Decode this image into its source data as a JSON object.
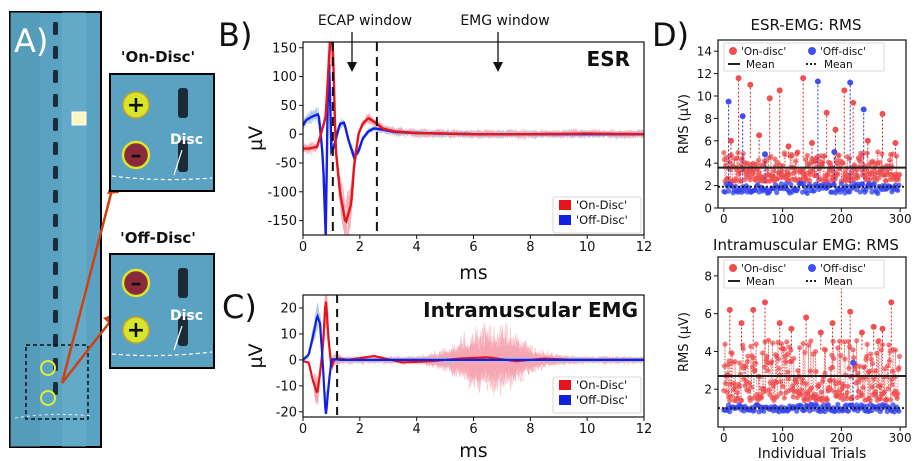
{
  "panels": {
    "A": {
      "label": "A)",
      "on_title": "'On-Disc'",
      "off_title": "'Off-Disc'",
      "disc_label": "Disc",
      "plus": "+",
      "minus": "–"
    },
    "B": {
      "label": "B)"
    },
    "C": {
      "label": "C)"
    },
    "D": {
      "label": "D)"
    }
  },
  "colors": {
    "on": "#e8141c",
    "off": "#1420e0",
    "on_light": "#f6a6b2",
    "off_light": "#a8c8e8",
    "tissue": "#5fa8c8"
  },
  "chart_data": [
    {
      "type": "line",
      "panel": "B",
      "title": "ESR",
      "xlabel": "ms",
      "ylabel": "µV",
      "xlim": [
        0,
        12
      ],
      "ylim": [
        -175,
        160
      ],
      "xticks": [
        0,
        2,
        4,
        6,
        8,
        10,
        12
      ],
      "yticks": [
        150,
        100,
        50,
        0,
        -50,
        -100,
        -150
      ],
      "annotations": [
        "ECAP window",
        "EMG window"
      ],
      "windows_ms": [
        1.05,
        2.6
      ],
      "series": [
        {
          "name": "'On-Disc'",
          "x": [
            0,
            0.2,
            0.5,
            0.8,
            0.95,
            1.05,
            1.15,
            1.3,
            1.5,
            1.7,
            1.8,
            1.95,
            2.1,
            2.3,
            2.55,
            2.8,
            3.2,
            4,
            6,
            8,
            10,
            12
          ],
          "y": [
            -25,
            -25,
            -22,
            30,
            160,
            160,
            -25,
            -100,
            -155,
            -120,
            -55,
            0,
            18,
            28,
            20,
            10,
            5,
            2,
            0,
            0,
            1,
            0
          ]
        },
        {
          "name": "'Off-Disc'",
          "x": [
            0,
            0.1,
            0.3,
            0.55,
            0.7,
            0.8,
            0.9,
            1,
            1.1,
            1.2,
            1.3,
            1.45,
            1.6,
            1.8,
            1.95,
            2.1,
            2.3,
            2.5,
            2.8,
            3.2,
            4,
            6,
            8,
            10,
            12
          ],
          "y": [
            15,
            24,
            30,
            35,
            -40,
            -175,
            160,
            -30,
            -20,
            0,
            18,
            20,
            -10,
            -40,
            -30,
            -8,
            5,
            10,
            8,
            4,
            2,
            0,
            0,
            0,
            0
          ]
        }
      ]
    },
    {
      "type": "line",
      "panel": "C",
      "title": "Intramuscular EMG",
      "xlabel": "ms",
      "ylabel": "µV",
      "xlim": [
        0,
        12
      ],
      "ylim": [
        -22,
        25
      ],
      "xticks": [
        0,
        2,
        4,
        6,
        8,
        10,
        12
      ],
      "yticks": [
        20,
        10,
        0,
        -10,
        -20
      ],
      "windows_ms": [
        1.2
      ],
      "series": [
        {
          "name": "'On-Disc'",
          "x": [
            0,
            0.2,
            0.35,
            0.5,
            0.6,
            0.7,
            0.8,
            0.9,
            1.0,
            1.1,
            1.3,
            1.6,
            2.5,
            3.5,
            4.5,
            5.5,
            6.5,
            7.5,
            8.5,
            9.5,
            10.5,
            12
          ],
          "y": [
            -0.5,
            -1,
            -8,
            -13,
            -5,
            5,
            24,
            8,
            -3,
            0,
            0.5,
            0,
            1.5,
            -1,
            -0.5,
            0.5,
            1,
            -0.5,
            0.5,
            0,
            0,
            0
          ]
        },
        {
          "name": "'Off-Disc'",
          "x": [
            0,
            0.2,
            0.35,
            0.5,
            0.6,
            0.7,
            0.8,
            0.9,
            1.0,
            1.1,
            1.3,
            1.6,
            3,
            6,
            9,
            12
          ],
          "y": [
            0,
            2,
            9,
            17,
            14,
            -2,
            -22,
            -10,
            0,
            0.3,
            0,
            0,
            0,
            0,
            0,
            0
          ]
        }
      ]
    },
    {
      "type": "scatter",
      "panel": "D-top",
      "title": "ESR-EMG: RMS",
      "xlabel": "",
      "ylabel": "RMS (µV)",
      "xlim": [
        -10,
        310
      ],
      "ylim": [
        0,
        15
      ],
      "xticks": [
        0,
        100,
        200,
        300
      ],
      "yticks": [
        0,
        2,
        4,
        6,
        8,
        10,
        12,
        14
      ],
      "legend": [
        "'On-disc'",
        "'Off-disc'",
        "Mean",
        "Mean"
      ],
      "mean_on": 3.6,
      "mean_off": 1.9,
      "on_peaks": [
        [
          12,
          6
        ],
        [
          25,
          11.6
        ],
        [
          45,
          11
        ],
        [
          60,
          6.5
        ],
        [
          78,
          9.8
        ],
        [
          95,
          10.5
        ],
        [
          110,
          5.5
        ],
        [
          135,
          11.6
        ],
        [
          150,
          5.8
        ],
        [
          175,
          8.5
        ],
        [
          190,
          7
        ],
        [
          205,
          10.5
        ],
        [
          220,
          9.4
        ],
        [
          245,
          6
        ],
        [
          270,
          8.4
        ],
        [
          292,
          5.8
        ]
      ],
      "off_peaks": [
        [
          8,
          9.5
        ],
        [
          32,
          8.2
        ],
        [
          70,
          4.8
        ],
        [
          160,
          11.3
        ],
        [
          188,
          5
        ],
        [
          215,
          11.2
        ],
        [
          238,
          8.8
        ]
      ],
      "on_band": [
        2.4,
        5.0
      ],
      "off_band": [
        1.3,
        2.2
      ]
    },
    {
      "type": "scatter",
      "panel": "D-bottom",
      "title": "Intramuscular EMG: RMS",
      "xlabel": "Individual Trials",
      "ylabel": "RMS (µV)",
      "xlim": [
        -10,
        310
      ],
      "ylim": [
        0,
        9
      ],
      "xticks": [
        0,
        100,
        200,
        300
      ],
      "yticks": [
        2,
        4,
        6,
        8
      ],
      "legend": [
        "'On-disc'",
        "'Off-disc'",
        "Mean",
        "Mean"
      ],
      "mean_on": 2.7,
      "mean_off": 1.0,
      "on_peaks": [
        [
          10,
          6.2
        ],
        [
          30,
          5.5
        ],
        [
          50,
          6.2
        ],
        [
          70,
          6.6
        ],
        [
          95,
          5.5
        ],
        [
          115,
          5.2
        ],
        [
          140,
          5.8
        ],
        [
          165,
          5.0
        ],
        [
          185,
          5.5
        ],
        [
          200,
          8.0
        ],
        [
          215,
          6.1
        ],
        [
          235,
          5.0
        ],
        [
          255,
          5.3
        ],
        [
          270,
          5.2
        ],
        [
          285,
          6.6
        ]
      ],
      "off_peaks": [
        [
          220,
          3.4
        ]
      ],
      "on_band": [
        1.4,
        4.6
      ],
      "off_band": [
        0.8,
        1.2
      ]
    }
  ]
}
